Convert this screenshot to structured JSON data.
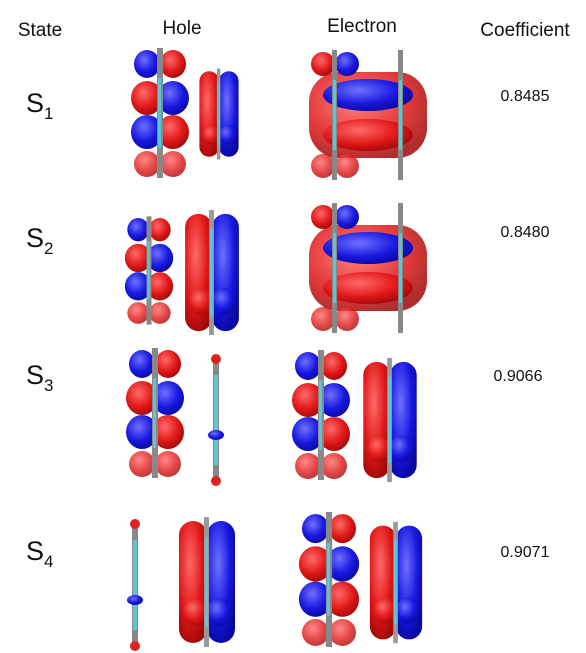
{
  "header": {
    "state": "State",
    "hole": "Hole",
    "electron": "Electron",
    "coefficient": "Coefficient"
  },
  "rows": [
    {
      "state": {
        "letter": "S",
        "index": "1"
      },
      "coefficient": "0.8485"
    },
    {
      "state": {
        "letter": "S",
        "index": "2"
      },
      "coefficient": "0.8480"
    },
    {
      "state": {
        "letter": "S",
        "index": "3"
      },
      "coefficient": "0.9066"
    },
    {
      "state": {
        "letter": "S",
        "index": "4"
      },
      "coefficient": "0.9071"
    }
  ]
}
